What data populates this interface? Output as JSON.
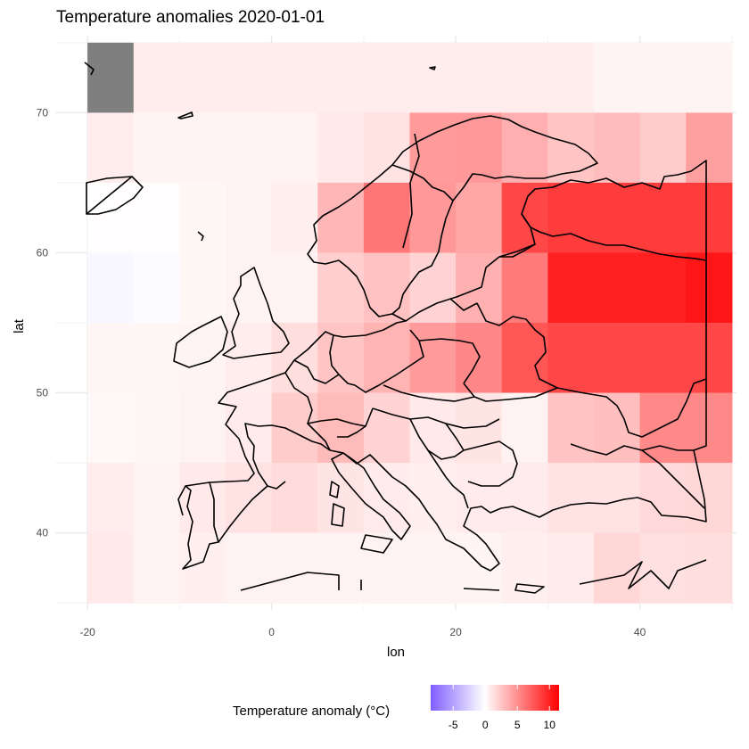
{
  "chart_data": {
    "type": "heatmap",
    "title": "Temperature anomalies  2020-01-01",
    "xlabel": "lon",
    "ylabel": "lat",
    "xlim": [
      -23.5,
      50.5
    ],
    "ylim": [
      34.5,
      75.5
    ],
    "x_ticks": [
      -20,
      0,
      20,
      40
    ],
    "y_ticks": [
      40,
      50,
      60,
      70
    ],
    "x_tick_labels": [
      "-20",
      "0",
      "20",
      "40"
    ],
    "y_tick_labels": [
      "40",
      "50",
      "60",
      "70"
    ],
    "grid": true,
    "cell_size_deg": [
      5,
      5
    ],
    "cells": [
      {
        "lon": -20,
        "lat": 70,
        "value": null
      },
      {
        "lon": -15,
        "lat": 70,
        "value": 0.8
      },
      {
        "lon": -10,
        "lat": 70,
        "value": 0.8
      },
      {
        "lon": -5,
        "lat": 70,
        "value": 0.8
      },
      {
        "lon": 0,
        "lat": 70,
        "value": 0.8
      },
      {
        "lon": 5,
        "lat": 70,
        "value": 0.8
      },
      {
        "lon": 10,
        "lat": 70,
        "value": 0.8
      },
      {
        "lon": 15,
        "lat": 70,
        "value": 0.8
      },
      {
        "lon": 20,
        "lat": 70,
        "value": 0.8
      },
      {
        "lon": 25,
        "lat": 70,
        "value": 0.8
      },
      {
        "lon": 30,
        "lat": 70,
        "value": 0.8
      },
      {
        "lon": 35,
        "lat": 70,
        "value": 0.5
      },
      {
        "lon": 40,
        "lat": 70,
        "value": 0.5
      },
      {
        "lon": 45,
        "lat": 70,
        "value": 0.5
      },
      {
        "lon": -20,
        "lat": 65,
        "value": 0.8
      },
      {
        "lon": -15,
        "lat": 65,
        "value": 0.5
      },
      {
        "lon": -10,
        "lat": 65,
        "value": 0.5
      },
      {
        "lon": -5,
        "lat": 65,
        "value": 0.5
      },
      {
        "lon": 0,
        "lat": 65,
        "value": 0.6
      },
      {
        "lon": 5,
        "lat": 65,
        "value": 1.0
      },
      {
        "lon": 10,
        "lat": 65,
        "value": 1.3
      },
      {
        "lon": 15,
        "lat": 65,
        "value": 4.5
      },
      {
        "lon": 20,
        "lat": 65,
        "value": 4.6
      },
      {
        "lon": 25,
        "lat": 65,
        "value": 3.6
      },
      {
        "lon": 30,
        "lat": 65,
        "value": 2.6
      },
      {
        "lon": 35,
        "lat": 65,
        "value": 3.0
      },
      {
        "lon": 40,
        "lat": 65,
        "value": 2.3
      },
      {
        "lon": 45,
        "lat": 65,
        "value": 4.3
      },
      {
        "lon": -20,
        "lat": 60,
        "value": 0.1
      },
      {
        "lon": -15,
        "lat": 60,
        "value": 0.1
      },
      {
        "lon": -10,
        "lat": 60,
        "value": 0.4
      },
      {
        "lon": -5,
        "lat": 60,
        "value": 0.6
      },
      {
        "lon": 0,
        "lat": 60,
        "value": 0.7
      },
      {
        "lon": 5,
        "lat": 60,
        "value": 3.3
      },
      {
        "lon": 10,
        "lat": 60,
        "value": 6.2
      },
      {
        "lon": 15,
        "lat": 60,
        "value": 4.6
      },
      {
        "lon": 20,
        "lat": 60,
        "value": 4.0
      },
      {
        "lon": 25,
        "lat": 60,
        "value": 8.3
      },
      {
        "lon": 30,
        "lat": 60,
        "value": 8.8
      },
      {
        "lon": 35,
        "lat": 60,
        "value": 8.8
      },
      {
        "lon": 40,
        "lat": 60,
        "value": 8.8
      },
      {
        "lon": 45,
        "lat": 60,
        "value": 8.8
      },
      {
        "lon": -20,
        "lat": 55,
        "value": -0.4
      },
      {
        "lon": -15,
        "lat": 55,
        "value": -0.2
      },
      {
        "lon": -10,
        "lat": 55,
        "value": 0.4
      },
      {
        "lon": -5,
        "lat": 55,
        "value": 0.6
      },
      {
        "lon": 0,
        "lat": 55,
        "value": 0.6
      },
      {
        "lon": 5,
        "lat": 55,
        "value": 2.2
      },
      {
        "lon": 10,
        "lat": 55,
        "value": 2.8
      },
      {
        "lon": 15,
        "lat": 55,
        "value": 2.0
      },
      {
        "lon": 20,
        "lat": 55,
        "value": 3.5
      },
      {
        "lon": 25,
        "lat": 55,
        "value": 6.0
      },
      {
        "lon": 30,
        "lat": 55,
        "value": 10.0
      },
      {
        "lon": 35,
        "lat": 55,
        "value": 10.0
      },
      {
        "lon": 40,
        "lat": 55,
        "value": 10.0
      },
      {
        "lon": 45,
        "lat": 55,
        "value": 10.5
      },
      {
        "lon": -20,
        "lat": 50,
        "value": 0.4
      },
      {
        "lon": -15,
        "lat": 50,
        "value": 0.4
      },
      {
        "lon": -10,
        "lat": 50,
        "value": 0.5
      },
      {
        "lon": -5,
        "lat": 50,
        "value": 0.8
      },
      {
        "lon": 0,
        "lat": 50,
        "value": 1.5
      },
      {
        "lon": 5,
        "lat": 50,
        "value": 2.6
      },
      {
        "lon": 10,
        "lat": 50,
        "value": 3.4
      },
      {
        "lon": 15,
        "lat": 50,
        "value": 4.5
      },
      {
        "lon": 20,
        "lat": 50,
        "value": 5.4
      },
      {
        "lon": 25,
        "lat": 50,
        "value": 7.6
      },
      {
        "lon": 30,
        "lat": 50,
        "value": 8.3
      },
      {
        "lon": 35,
        "lat": 50,
        "value": 8.3
      },
      {
        "lon": 40,
        "lat": 50,
        "value": 8.3
      },
      {
        "lon": 45,
        "lat": 50,
        "value": 8.3
      },
      {
        "lon": -20,
        "lat": 45,
        "value": 0.3
      },
      {
        "lon": -15,
        "lat": 45,
        "value": 0.4
      },
      {
        "lon": -10,
        "lat": 45,
        "value": 0.6
      },
      {
        "lon": -5,
        "lat": 45,
        "value": 0.9
      },
      {
        "lon": 0,
        "lat": 45,
        "value": 2.3
      },
      {
        "lon": 5,
        "lat": 45,
        "value": 3.1
      },
      {
        "lon": 10,
        "lat": 45,
        "value": 2.0
      },
      {
        "lon": 15,
        "lat": 45,
        "value": 1.0
      },
      {
        "lon": 20,
        "lat": 45,
        "value": 1.2
      },
      {
        "lon": 25,
        "lat": 45,
        "value": 0.6
      },
      {
        "lon": 30,
        "lat": 45,
        "value": 2.7
      },
      {
        "lon": 35,
        "lat": 45,
        "value": 2.9
      },
      {
        "lon": 40,
        "lat": 45,
        "value": 5.3
      },
      {
        "lon": 45,
        "lat": 45,
        "value": 5.3
      },
      {
        "lon": -20,
        "lat": 40,
        "value": 0.8
      },
      {
        "lon": -15,
        "lat": 40,
        "value": 0.6
      },
      {
        "lon": -10,
        "lat": 40,
        "value": 1.0
      },
      {
        "lon": -5,
        "lat": 40,
        "value": 1.3
      },
      {
        "lon": 0,
        "lat": 40,
        "value": 1.6
      },
      {
        "lon": 5,
        "lat": 40,
        "value": 1.2
      },
      {
        "lon": 10,
        "lat": 40,
        "value": 0.9
      },
      {
        "lon": 15,
        "lat": 40,
        "value": 0.7
      },
      {
        "lon": 20,
        "lat": 40,
        "value": 0.9
      },
      {
        "lon": 25,
        "lat": 40,
        "value": 0.9
      },
      {
        "lon": 30,
        "lat": 40,
        "value": 1.3
      },
      {
        "lon": 35,
        "lat": 40,
        "value": 1.3
      },
      {
        "lon": 40,
        "lat": 40,
        "value": 1.7
      },
      {
        "lon": 45,
        "lat": 40,
        "value": 1.8
      },
      {
        "lon": -20,
        "lat": 35,
        "value": 1.0
      },
      {
        "lon": -15,
        "lat": 35,
        "value": 0.6
      },
      {
        "lon": -10,
        "lat": 35,
        "value": 0.7
      },
      {
        "lon": -5,
        "lat": 35,
        "value": 0.6
      },
      {
        "lon": 0,
        "lat": 35,
        "value": 0.6
      },
      {
        "lon": 5,
        "lat": 35,
        "value": 0.6
      },
      {
        "lon": 10,
        "lat": 35,
        "value": 0.6
      },
      {
        "lon": 15,
        "lat": 35,
        "value": 0.6
      },
      {
        "lon": 20,
        "lat": 35,
        "value": 0.5
      },
      {
        "lon": 25,
        "lat": 35,
        "value": 0.7
      },
      {
        "lon": 30,
        "lat": 35,
        "value": 0.9
      },
      {
        "lon": 35,
        "lat": 35,
        "value": 1.8
      },
      {
        "lon": 40,
        "lat": 35,
        "value": 1.4
      },
      {
        "lon": 45,
        "lat": 35,
        "value": 1.5
      }
    ],
    "legend": {
      "title": "Temperature anomaly (°C)",
      "position": "bottom",
      "range": [
        -8.5,
        11.5
      ],
      "ticks": [
        -5,
        0,
        5,
        10
      ],
      "tick_labels": [
        "-5",
        "0",
        "5",
        "10"
      ],
      "colors": {
        "low": "#7f5fff",
        "mid": "#ffffff",
        "high": "#ff0000"
      }
    },
    "missing_color": "#7f7f7f"
  }
}
